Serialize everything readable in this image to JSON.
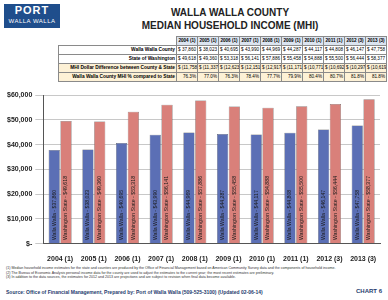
{
  "header": {
    "logo": "PORT",
    "logo_sub": "WALLA WALLA",
    "title": [
      "WALLA WALLA COUNTY",
      "MEDIAN HOUSEHOLD INCOME (MHI)"
    ]
  },
  "table": {
    "columns": [
      "2004 (1)",
      "2005 (1)",
      "2006 (1)",
      "2007 (1)",
      "2008 (1)",
      "2009 (1)",
      "2010 (1)",
      "2011 (1)",
      "2012 (3)",
      "2013 (3)"
    ],
    "rows": [
      {
        "label": "Walla Walla County",
        "cells": [
          "$ 37,860",
          "$ 38,023",
          "$ 40,695",
          "$ 43,990",
          "$ 44,969",
          "$ 44,287",
          "$ 44,117",
          "$ 44,808",
          "$ 46,147",
          "$ 47,758"
        ]
      },
      {
        "label": "State of Washington",
        "cells": [
          "$ 49,618",
          "$ 49,360",
          "$ 53,318",
          "$ 56,141",
          "$ 57,886",
          "$ 55,458",
          "$ 54,888",
          "$ 55,500",
          "$ 56,444",
          "$ 58,377"
        ]
      },
      {
        "label": "MHI Dollar Difference between County & State",
        "cells": [
          "$ (11,758)",
          "$ (11,337)",
          "$ (12,623)",
          "$ (12,151)",
          "$ (12,917)",
          "$ (11,171)",
          "$ (10,771)",
          "$ (10,692)",
          "$ (10,297)",
          "$ (10,619)"
        ]
      },
      {
        "label": "Walla Walla County MHI % compared to State",
        "cells": [
          "76.3%",
          "77.0%",
          "76.3%",
          "78.4%",
          "77.7%",
          "79.9%",
          "80.4%",
          "80.7%",
          "81.8%",
          "81.8%"
        ]
      }
    ]
  },
  "chart_data": {
    "type": "bar",
    "categories": [
      "2004 (1)",
      "2005 (1)",
      "2006 (1)",
      "2007 (1)",
      "2008 (1)",
      "2009 (1)",
      "2010 (1)",
      "2011 (1)",
      "2012 (3)",
      "2013 (3)"
    ],
    "series": [
      {
        "name": "Walla Walla",
        "color": "#5b6fb5",
        "values": [
          37860,
          38023,
          40695,
          43990,
          44969,
          44287,
          44117,
          44808,
          46147,
          47758
        ],
        "value_labels": [
          "Walla Walla - $37,860",
          "Walla Walla - $38,023",
          "Walla Walla - $40,695",
          "Walla Walla - $43,990",
          "Walla Walla - $44,969",
          "Walla Walla - $44,287",
          "Walla Walla - $44,117",
          "Walla Walla - $44,808",
          "Walla Walla - $46,147",
          "Walla Walla - $47,758"
        ]
      },
      {
        "name": "Washington State",
        "color": "#d9807a",
        "values": [
          49618,
          49360,
          53318,
          56141,
          57886,
          55458,
          54888,
          55500,
          56444,
          58377
        ],
        "value_labels": [
          "Washington State - $49,618",
          "Washington State - $49,360",
          "Washington State - $53,318",
          "Washington State - $56,141",
          "Washington State - $57,886",
          "Washington State - $55,458",
          "Washington State - $54,888",
          "Washington State - $55,500",
          "Washington State - $56,444",
          "Washington State - $58,377"
        ]
      }
    ],
    "ylim": [
      0,
      60000
    ],
    "yticks": [
      {
        "value": 0,
        "label": "$-"
      },
      {
        "value": 10000,
        "label": "$10,000"
      },
      {
        "value": 20000,
        "label": "$20,000"
      },
      {
        "value": 30000,
        "label": "$30,000"
      },
      {
        "value": 40000,
        "label": "$40,000"
      },
      {
        "value": 50000,
        "label": "$50,000"
      },
      {
        "value": 60000,
        "label": "$60,000"
      }
    ],
    "grid": true,
    "data_labels": true
  },
  "footnotes": [
    "(1) Median household income estimates for the state and counties are produced by the Office of Financial Management based on American Community Survey data and the components of household income.",
    "(2) The Bureau of Economic Analysis personal income data for the county are used to adjust the estimates to the current year; the most recent estimates are preliminary.",
    "(3) In addition to the data sources, the estimates for 2012 and 2013 are projections and are subject to revision when final data become available."
  ],
  "source": "Source: Office of Financial Management, Prepared by: Port of Walla Walla (509-525-3100) (Updated 02-06-14)",
  "chart_number": "CHART 6"
}
